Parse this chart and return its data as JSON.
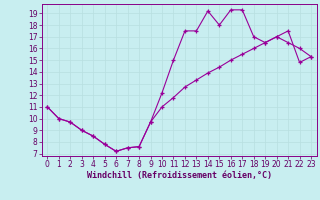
{
  "xlabel": "Windchill (Refroidissement éolien,°C)",
  "background_color": "#c8eef0",
  "line_color": "#990099",
  "grid_color": "#b8dfe0",
  "x_ticks": [
    0,
    1,
    2,
    3,
    4,
    5,
    6,
    7,
    8,
    9,
    10,
    11,
    12,
    13,
    14,
    15,
    16,
    17,
    18,
    19,
    20,
    21,
    22,
    23
  ],
  "y_ticks": [
    7,
    8,
    9,
    10,
    11,
    12,
    13,
    14,
    15,
    16,
    17,
    18,
    19
  ],
  "ylim": [
    6.8,
    19.8
  ],
  "xlim": [
    -0.5,
    23.5
  ],
  "line1_x": [
    0,
    1,
    2,
    3,
    4,
    5,
    6,
    7,
    8,
    9,
    10,
    11,
    12,
    13,
    14,
    15,
    16,
    17,
    18,
    19,
    20,
    21,
    22,
    23
  ],
  "line1_y": [
    11.0,
    10.0,
    9.7,
    9.0,
    8.5,
    7.8,
    7.2,
    7.5,
    7.6,
    9.7,
    12.2,
    15.0,
    17.5,
    17.5,
    19.2,
    18.0,
    19.3,
    19.3,
    17.0,
    16.5,
    17.0,
    16.5,
    16.0,
    15.3
  ],
  "line2_x": [
    0,
    1,
    2,
    3,
    4,
    5,
    6,
    7,
    8,
    9,
    10,
    11,
    12,
    13,
    14,
    15,
    16,
    17,
    18,
    19,
    20,
    21,
    22,
    23
  ],
  "line2_y": [
    11.0,
    10.0,
    9.7,
    9.0,
    8.5,
    7.8,
    7.2,
    7.5,
    7.6,
    9.7,
    11.0,
    11.8,
    12.7,
    13.3,
    13.9,
    14.4,
    15.0,
    15.5,
    16.0,
    16.5,
    17.0,
    17.5,
    14.8,
    15.3
  ],
  "tick_fontsize": 5.5,
  "xlabel_fontsize": 6,
  "marker": "+",
  "markersize": 3.5,
  "linewidth": 0.8
}
